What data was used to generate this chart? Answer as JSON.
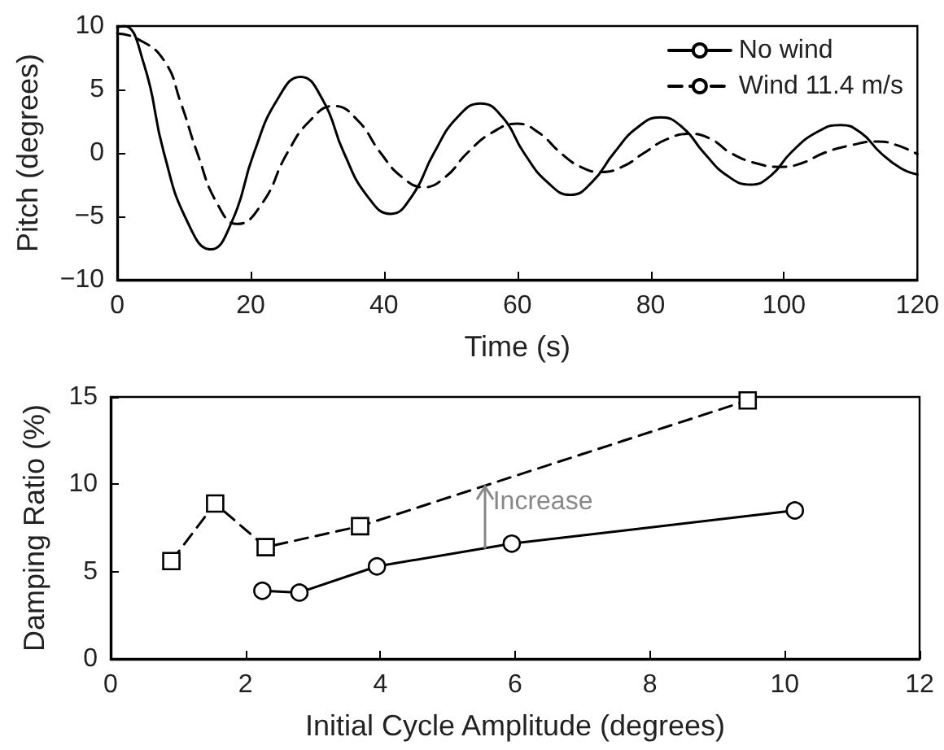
{
  "chart_data": [
    {
      "type": "line",
      "xlabel": "Time (s)",
      "ylabel": "Pitch (degrees)",
      "xlim": [
        0,
        120
      ],
      "xticks": [
        0,
        20,
        40,
        60,
        80,
        100,
        120
      ],
      "ylim": [
        -10,
        10
      ],
      "yticks": [
        -10,
        -5,
        0,
        5,
        10
      ],
      "legend": "top right",
      "marker": "none",
      "grid": false,
      "series": [
        {
          "name": "No wind",
          "color": "#000000",
          "line_style": "solid",
          "x": [
            0,
            1,
            4,
            7,
            10.5,
            14,
            17.2,
            20.5,
            24,
            27.5,
            30.8,
            34,
            37.5,
            41,
            44.2,
            47.5,
            51,
            54.5,
            57.8,
            61,
            64.5,
            68,
            71.2,
            74.5,
            78,
            81.5,
            84.8,
            88,
            91.5,
            95,
            98,
            101,
            104.8,
            108.5,
            111.5,
            114.5,
            117.5,
            120
          ],
          "values": [
            9.9,
            10,
            7,
            0,
            -5.4,
            -7.6,
            -5.4,
            0,
            4.2,
            6,
            4.2,
            0,
            -3.4,
            -4.8,
            -3.4,
            0,
            2.8,
            3.9,
            2.8,
            0,
            -2.3,
            -3.3,
            -2.3,
            0,
            2,
            2.8,
            2,
            0,
            -1.8,
            -2.5,
            -1.8,
            0,
            1.6,
            2.2,
            1.6,
            0,
            -1.2,
            -1.7
          ]
        },
        {
          "name": "Wind 11.4 m/s",
          "color": "#000000",
          "line_style": "dashed",
          "x": [
            0,
            3,
            7,
            9.5,
            12,
            15,
            18,
            21.7,
            25.5,
            29,
            32.5,
            36,
            39.5,
            42.7,
            46,
            49.2,
            52.5,
            56.2,
            60,
            63.2,
            66.5,
            69.5,
            72.5,
            75.7,
            79,
            82.5,
            86,
            89,
            92,
            95.7,
            99.5,
            102.7,
            106,
            110,
            114,
            117,
            120
          ],
          "values": [
            9.4,
            9,
            7.3,
            4,
            0,
            -4,
            -5.6,
            -4,
            0,
            2.6,
            3.7,
            2.6,
            0,
            -1.9,
            -2.7,
            -1.9,
            0,
            1.6,
            2.3,
            1.6,
            0,
            -1.1,
            -1.5,
            -1.1,
            0,
            1.1,
            1.5,
            1.1,
            0,
            -0.8,
            -1.1,
            -0.8,
            0,
            0.6,
            0.9,
            0.6,
            -0.1
          ]
        }
      ]
    },
    {
      "type": "line",
      "xlabel": "Initial Cycle Amplitude (degrees)",
      "ylabel": "Damping Ratio (%)",
      "xlim": [
        0,
        12
      ],
      "xticks": [
        0,
        2,
        4,
        6,
        8,
        10,
        12
      ],
      "ylim": [
        0,
        15
      ],
      "yticks": [
        0,
        5,
        10,
        15
      ],
      "grid": false,
      "annotations": [
        {
          "text": "Increase",
          "x": 5.55,
          "y": 9.9
        }
      ],
      "series": [
        {
          "color": "#000000",
          "line_style": "solid",
          "marker": "circle",
          "x": [
            2.25,
            2.8,
            3.95,
            5.95,
            10.15
          ],
          "values": [
            3.9,
            3.8,
            5.3,
            6.6,
            8.5
          ]
        },
        {
          "color": "#000000",
          "line_style": "dashed",
          "marker": "square",
          "x": [
            0.9,
            1.55,
            2.3,
            3.7,
            9.45
          ],
          "values": [
            5.6,
            8.9,
            6.4,
            7.6,
            14.8
          ]
        }
      ]
    }
  ]
}
